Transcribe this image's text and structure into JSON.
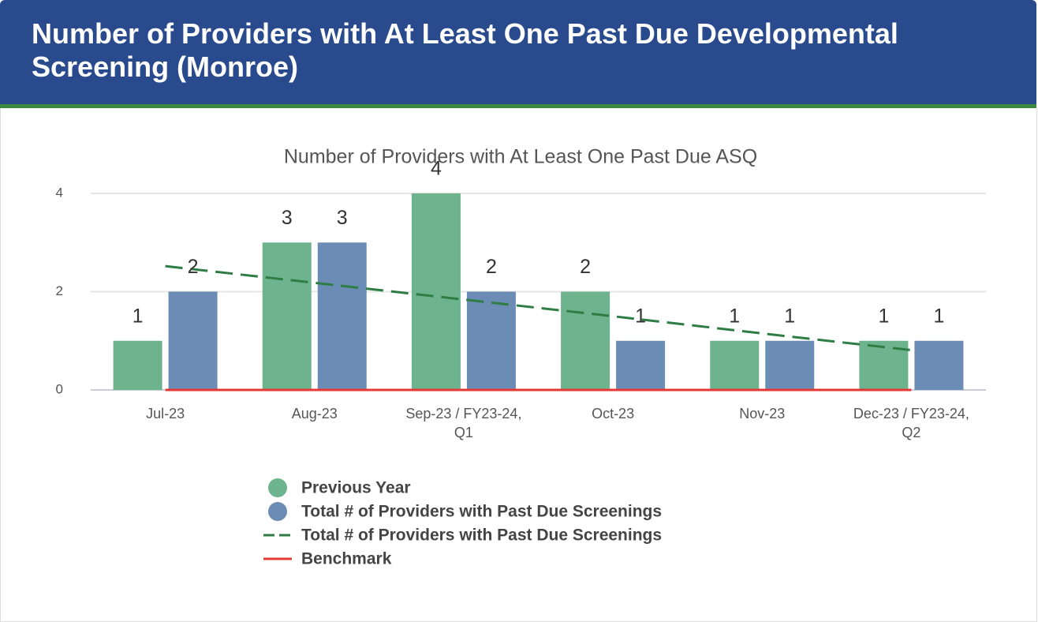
{
  "panel_title": "Number of Providers with At Least One Past Due Developmental Screening (Monroe)",
  "chart_data": {
    "type": "bar",
    "title": "Number of Providers with At Least One Past Due ASQ",
    "categories": [
      "Jul-23",
      "Aug-23",
      "Sep-23 / FY23-24, Q1",
      "Oct-23",
      "Nov-23",
      "Dec-23 / FY23-24, Q2"
    ],
    "series": [
      {
        "name": "Previous Year",
        "type": "bar",
        "color": "#6db38e",
        "values": [
          1,
          3,
          4,
          2,
          1,
          1
        ]
      },
      {
        "name": "Total # of Providers with Past Due Screenings",
        "type": "bar",
        "color": "#6b8db5",
        "values": [
          2,
          3,
          2,
          1,
          1,
          1
        ]
      },
      {
        "name": "Total # of Providers with Past Due Screenings",
        "type": "line",
        "color": "#2e7d45",
        "dashed": true,
        "values": [
          2.52,
          2.18,
          1.84,
          1.5,
          1.15,
          0.81
        ]
      },
      {
        "name": "Benchmark",
        "type": "line",
        "color": "#e53935",
        "values": [
          0,
          0,
          0,
          0,
          0,
          0
        ]
      }
    ],
    "ylim": [
      0,
      4
    ],
    "yticks": [
      0,
      2,
      4
    ],
    "grid": true,
    "data_labels": true
  }
}
